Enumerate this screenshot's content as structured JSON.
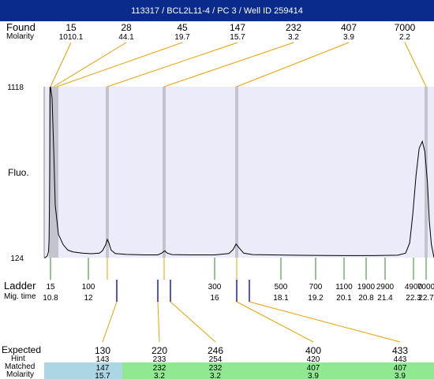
{
  "header": {
    "title": "113317 / BCL2L11-4 / PC 3 / Well ID 259414"
  },
  "labels": {
    "found": "Found",
    "molarity": "Molarity",
    "fluo": "Fluo.",
    "ladder": "Ladder",
    "mig_time": "Mig. time",
    "expected": "Expected",
    "hint": "Hint",
    "matched": "Matched",
    "molarity_bottom": "Molarity"
  },
  "colors": {
    "title_bg": "#0a2a8c",
    "plot_bg": "#ebebfa",
    "marker": "#c4c4cf",
    "connector": "#f0a000",
    "ladder_tick": "#2e8b2e",
    "peak_tick": "#1a1acc",
    "matched_blue": "#acd6e4",
    "matched_green": "#90e890"
  },
  "chart_data": {
    "type": "line",
    "ylim": [
      124,
      1118
    ],
    "y_ticks": [
      "1118",
      "124"
    ],
    "found": [
      {
        "size": "15",
        "molarity": "1010.1",
        "time": 10.8
      },
      {
        "size": "28",
        "molarity": "44.1",
        "time": 10.9
      },
      {
        "size": "45",
        "molarity": "19.7",
        "time": 11.0
      },
      {
        "size": "147",
        "molarity": "15.7",
        "time": 12.6
      },
      {
        "size": "232",
        "molarity": "3.2",
        "time": 14.4
      },
      {
        "size": "407",
        "molarity": "3.9",
        "time": 16.7
      },
      {
        "size": "7000",
        "molarity": "2.2",
        "time": 22.7
      }
    ],
    "ladder": [
      {
        "size": "15",
        "time": "10.8"
      },
      {
        "size": "100",
        "time": "12"
      },
      {
        "size": "300",
        "time": "16"
      },
      {
        "size": "500",
        "time": "18.1"
      },
      {
        "size": "700",
        "time": "19.2"
      },
      {
        "size": "1100",
        "time": "20.1"
      },
      {
        "size": "1900",
        "time": "20.8"
      },
      {
        "size": "2900",
        "time": "21.4"
      },
      {
        "size": "4900",
        "time": "22.3"
      },
      {
        "size": "7000",
        "time": "22.7"
      }
    ],
    "expected": [
      {
        "size": "130",
        "hint": "143",
        "matched": "147",
        "molarity": "15.7"
      },
      {
        "size": "220",
        "hint": "233",
        "matched": "232",
        "molarity": "3.2"
      },
      {
        "size": "246",
        "hint": "254",
        "matched": "232",
        "molarity": "3.2"
      },
      {
        "size": "400",
        "hint": "420",
        "matched": "407",
        "molarity": "3.9"
      },
      {
        "size": "433",
        "hint": "443",
        "matched": "407",
        "molarity": "3.9"
      }
    ],
    "trace": [
      [
        10.0,
        124
      ],
      [
        10.15,
        124
      ],
      [
        10.4,
        135
      ],
      [
        10.55,
        160
      ],
      [
        10.62,
        230
      ],
      [
        10.7,
        600
      ],
      [
        10.75,
        1110
      ],
      [
        10.8,
        1118
      ],
      [
        10.85,
        1050
      ],
      [
        10.9,
        760
      ],
      [
        10.95,
        430
      ],
      [
        11.05,
        260
      ],
      [
        11.2,
        200
      ],
      [
        11.35,
        168
      ],
      [
        11.5,
        158
      ],
      [
        11.8,
        150
      ],
      [
        12.1,
        147
      ],
      [
        12.35,
        150
      ],
      [
        12.45,
        165
      ],
      [
        12.55,
        200
      ],
      [
        12.6,
        230
      ],
      [
        12.65,
        210
      ],
      [
        12.72,
        168
      ],
      [
        12.85,
        148
      ],
      [
        13.2,
        143
      ],
      [
        13.8,
        140
      ],
      [
        14.2,
        140
      ],
      [
        14.32,
        150
      ],
      [
        14.42,
        164
      ],
      [
        14.5,
        150
      ],
      [
        14.65,
        142
      ],
      [
        15.2,
        140
      ],
      [
        16.0,
        140
      ],
      [
        16.45,
        148
      ],
      [
        16.58,
        170
      ],
      [
        16.68,
        203
      ],
      [
        16.78,
        180
      ],
      [
        16.92,
        150
      ],
      [
        17.2,
        142
      ],
      [
        18.5,
        138
      ],
      [
        20.0,
        136
      ],
      [
        21.0,
        136
      ],
      [
        21.8,
        138
      ],
      [
        22.05,
        150
      ],
      [
        22.18,
        210
      ],
      [
        22.28,
        380
      ],
      [
        22.38,
        600
      ],
      [
        22.48,
        760
      ],
      [
        22.58,
        800
      ],
      [
        22.66,
        740
      ],
      [
        22.75,
        560
      ],
      [
        22.82,
        340
      ],
      [
        22.9,
        200
      ],
      [
        23.0,
        124
      ]
    ]
  }
}
